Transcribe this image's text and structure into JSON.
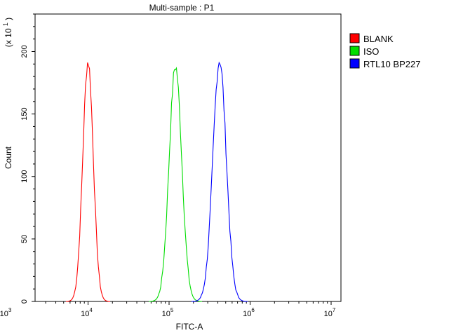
{
  "chart_data": {
    "type": "line",
    "title": "Multi-sample : P1",
    "xlabel": "FITC-A",
    "ylabel": "Count",
    "y_multiplier_label": "(x 10",
    "y_multiplier_exp": "1",
    "x_scale": "log",
    "xlim": [
      1000,
      10000000
    ],
    "ylim": [
      0,
      230
    ],
    "x_tick_labels": [
      {
        "base": "10",
        "exp": "3",
        "value": 1000
      },
      {
        "base": "10",
        "exp": "4",
        "value": 10000
      },
      {
        "base": "10",
        "exp": "5",
        "value": 100000
      },
      {
        "base": "10",
        "exp": "6",
        "value": 1000000
      },
      {
        "base": "10",
        "exp": "7",
        "value": 10000000
      }
    ],
    "y_ticks": [
      0,
      50,
      100,
      150,
      200
    ],
    "y_tick_labels": [
      "0",
      "50",
      "100",
      "150",
      "200"
    ],
    "legend_position": "top-right",
    "series": [
      {
        "name": "BLANK",
        "color": "#ff0000",
        "peak_x": 10000,
        "peak_y": 192
      },
      {
        "name": "ISO",
        "color": "#00dd00",
        "peak_x": 120000,
        "peak_y": 188
      },
      {
        "name": "RTL10 BP227",
        "color": "#0000ff",
        "peak_x": 420000,
        "peak_y": 193
      }
    ]
  }
}
